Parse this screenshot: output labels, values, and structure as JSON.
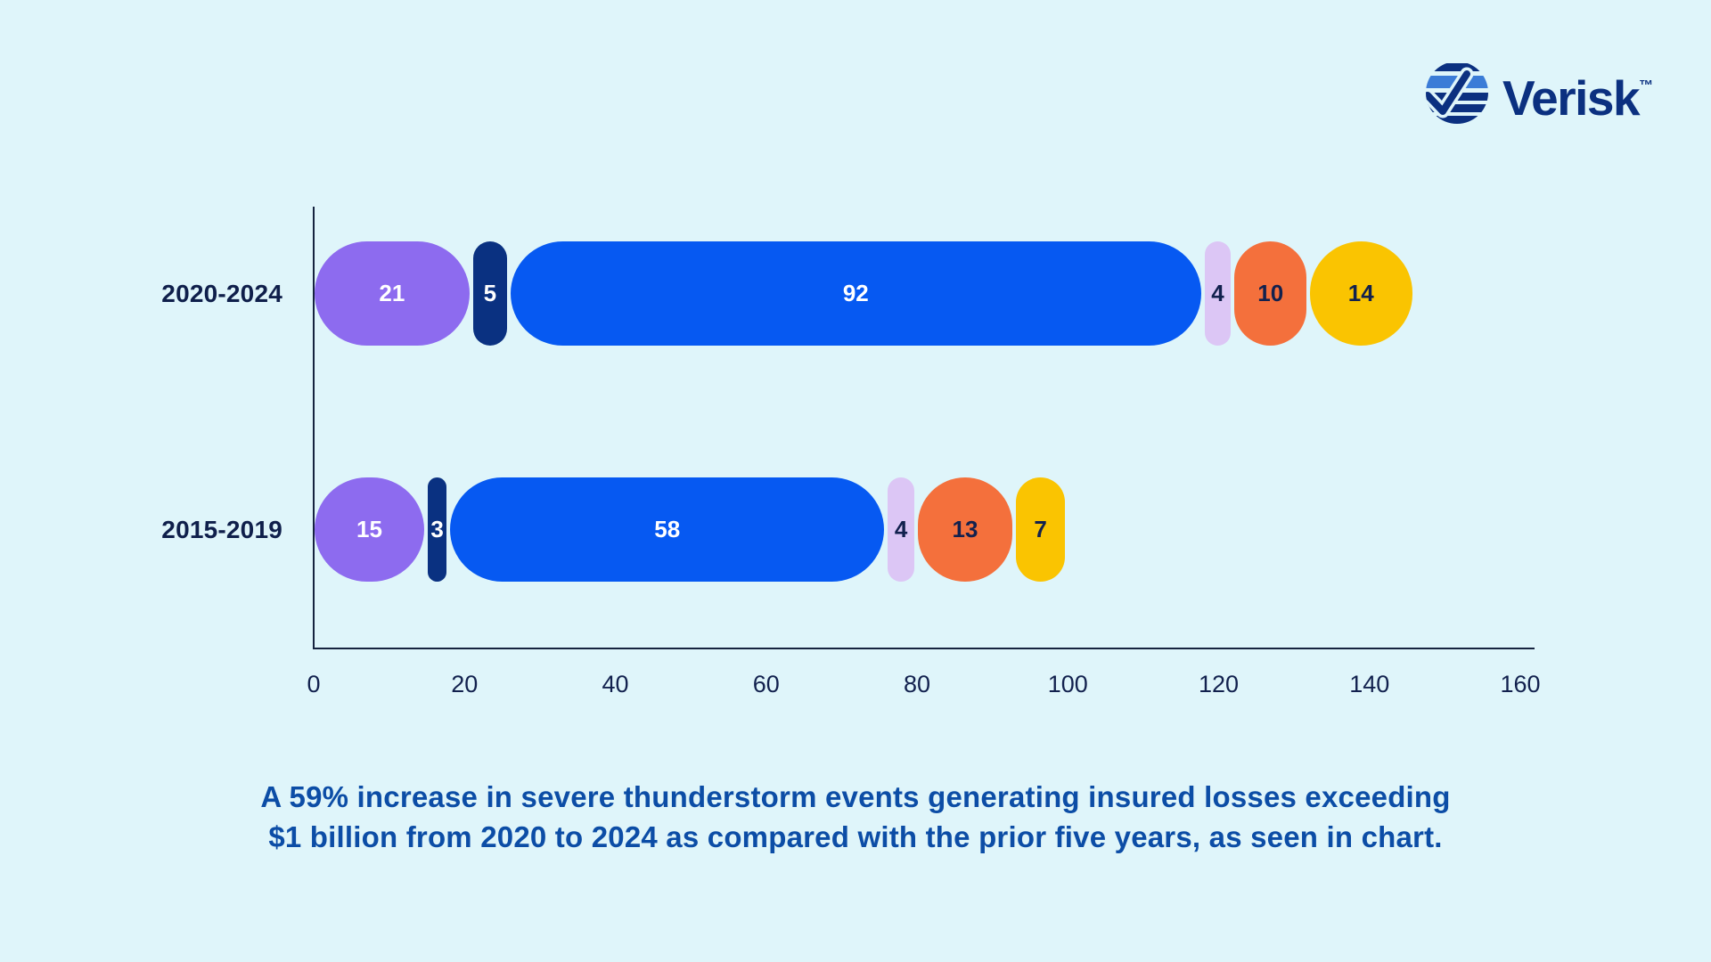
{
  "logo": {
    "wordmark": "Verisk",
    "trademark": "™"
  },
  "chart_data": {
    "type": "bar",
    "orientation": "horizontal",
    "title": "",
    "xlabel": "",
    "ylabel": "",
    "categories": [
      "2020-2024",
      "2015-2019"
    ],
    "series": [
      {
        "name": "purple-segment",
        "color": "#8D6BEF",
        "label_color": "#FFFFFF",
        "values": [
          21,
          15
        ]
      },
      {
        "name": "dark-navy-segment",
        "color": "#0A3181",
        "label_color": "#FFFFFF",
        "values": [
          5,
          3
        ]
      },
      {
        "name": "bright-blue-segment",
        "color": "#0659F2",
        "label_color": "#FFFFFF",
        "values": [
          92,
          58
        ]
      },
      {
        "name": "lavender-segment",
        "color": "#DCC6F5",
        "label_color": "#12214E",
        "values": [
          4,
          4
        ]
      },
      {
        "name": "orange-segment",
        "color": "#F4703C",
        "label_color": "#12214E",
        "values": [
          10,
          13
        ]
      },
      {
        "name": "yellow-segment",
        "color": "#FAC401",
        "label_color": "#12214E",
        "values": [
          14,
          7
        ]
      }
    ],
    "x_ticks": [
      0,
      20,
      40,
      60,
      80,
      100,
      120,
      140,
      160
    ],
    "xlim": [
      0,
      160
    ],
    "grid": false,
    "legend": "none",
    "caption_lines": [
      "A 59% increase in severe thunderstorm events generating insured losses exceeding",
      "$1 billion from 2020 to 2024 as compared with the prior five years, as seen in chart."
    ]
  },
  "colors": {
    "background": "#DFF5FA",
    "axis": "#16233F",
    "category_label_text": "#0F1F4B",
    "tick_label_text": "#12214E",
    "caption_text": "#0C4DA6",
    "logo_navy": "#0B3080",
    "logo_light_blue": "#3B7CD7"
  }
}
